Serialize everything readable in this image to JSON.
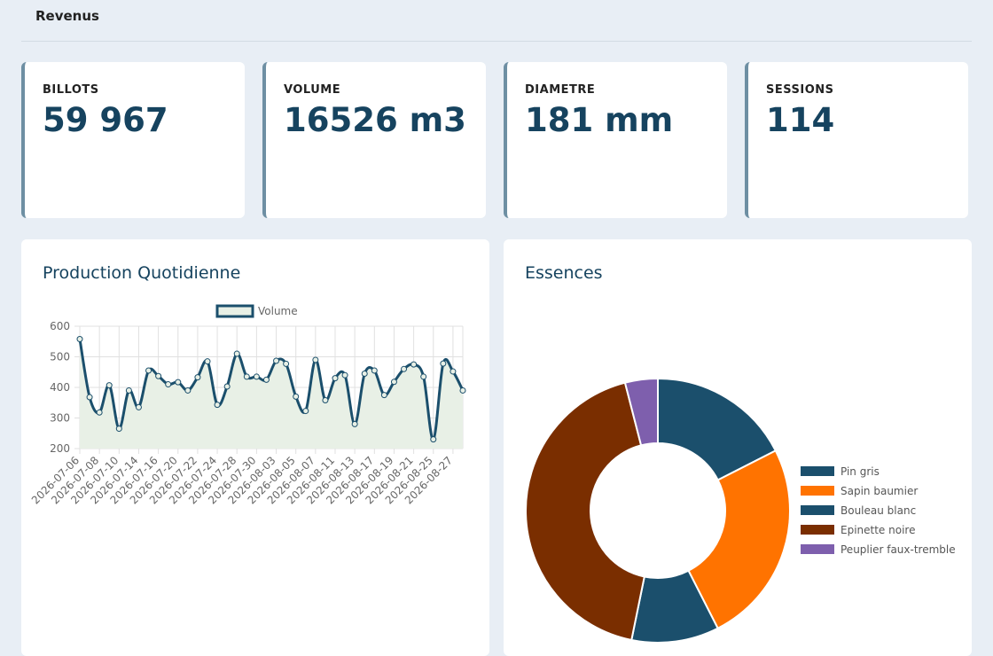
{
  "header": {
    "title": "Revenus"
  },
  "kpis": [
    {
      "label": "BILLOTS",
      "value": "59 967"
    },
    {
      "label": "VOLUME",
      "value": "16526 m3"
    },
    {
      "label": "DIAMETRE",
      "value": "181 mm"
    },
    {
      "label": "SESSIONS",
      "value": "114"
    }
  ],
  "colors": {
    "accent": "#16435f",
    "kpi_border": "#6e8fa3",
    "line": "#1b4f6c",
    "fill": "#e8f0e6",
    "page_bg": "#e8eef5"
  },
  "production": {
    "title": "Production Quotidienne"
  },
  "essences": {
    "title": "Essences"
  },
  "chart_data": [
    {
      "type": "line",
      "legend": [
        "Volume"
      ],
      "ylim": [
        200,
        600
      ],
      "yticks": [
        200,
        300,
        400,
        500,
        600
      ],
      "grid": true,
      "legend_position": "top",
      "fill": true,
      "x_tick_labels": [
        "2026-07-06",
        "2026-07-08",
        "2026-07-10",
        "2026-07-14",
        "2026-07-16",
        "2026-07-20",
        "2026-07-22",
        "2026-07-24",
        "2026-07-28",
        "2026-07-30",
        "2026-08-03",
        "2026-08-05",
        "2026-08-07",
        "2026-08-11",
        "2026-08-13",
        "2026-08-17",
        "2026-08-19",
        "2026-08-21",
        "2026-08-25",
        "2026-08-27"
      ],
      "series": [
        {
          "name": "Volume",
          "values": [
            558,
            368,
            318,
            407,
            265,
            390,
            335,
            455,
            437,
            410,
            417,
            390,
            433,
            485,
            343,
            403,
            510,
            435,
            435,
            425,
            487,
            477,
            370,
            323,
            490,
            358,
            430,
            440,
            280,
            445,
            455,
            375,
            418,
            460,
            475,
            435,
            230,
            478,
            452,
            390
          ]
        }
      ]
    },
    {
      "type": "pie",
      "donut": true,
      "legend_position": "right",
      "labels": [
        "Pin gris",
        "Sapin baumier",
        "Bouleau blanc",
        "Epinette noire",
        "Peuplier faux-tremble"
      ],
      "values": [
        17.5,
        25,
        10.7,
        42.8,
        4.0
      ],
      "colors": [
        "#1b4f6c",
        "#ff7300",
        "#1b4f6c",
        "#7a2e00",
        "#7e5fad"
      ]
    }
  ]
}
